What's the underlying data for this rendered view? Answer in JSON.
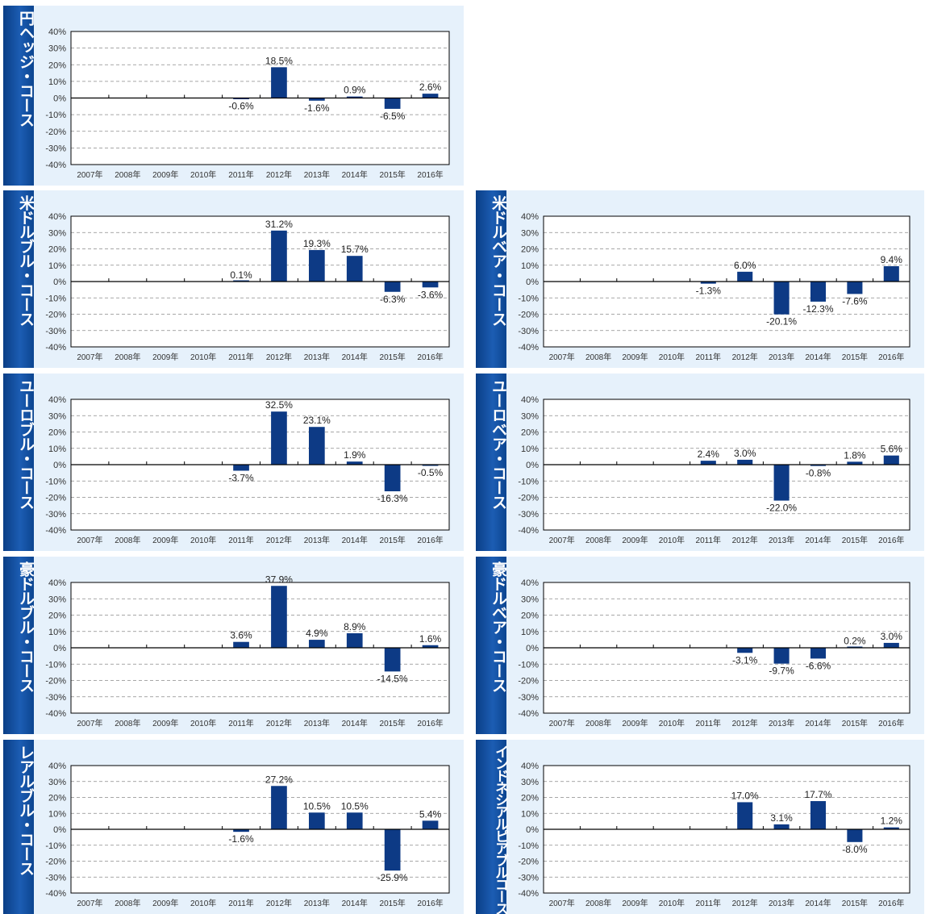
{
  "categories": [
    "2007年",
    "2008年",
    "2009年",
    "2010年",
    "2011年",
    "2012年",
    "2013年",
    "2014年",
    "2015年",
    "2016年"
  ],
  "y_ticks": [
    "40%",
    "30%",
    "20%",
    "10%",
    "0%",
    "-10%",
    "-20%",
    "-30%",
    "-40%"
  ],
  "colors": {
    "bar": "#0d3a85",
    "side_dark": "#0a3e86",
    "panel_bg": "#e6f1fb"
  },
  "chart_data": [
    {
      "type": "bar",
      "title": "円ヘッジ・コース",
      "ylim": [
        -40,
        40
      ],
      "values": [
        null,
        null,
        null,
        null,
        -0.6,
        18.5,
        -1.6,
        0.9,
        -6.5,
        2.6
      ],
      "labels": [
        "",
        "",
        "",
        "",
        "-0.6%",
        "18.5%",
        "-1.6%",
        "0.9%",
        "-6.5%",
        "2.6%"
      ]
    },
    {
      "type": "bar",
      "title": "米ドルブル・コース",
      "ylim": [
        -40,
        40
      ],
      "values": [
        null,
        null,
        null,
        null,
        0.1,
        31.2,
        19.3,
        15.7,
        -6.3,
        -3.6
      ],
      "labels": [
        "",
        "",
        "",
        "",
        "0.1%",
        "31.2%",
        "19.3%",
        "15.7%",
        "-6.3%",
        "-3.6%"
      ]
    },
    {
      "type": "bar",
      "title": "米ドルベア・コース",
      "ylim": [
        -40,
        40
      ],
      "values": [
        null,
        null,
        null,
        null,
        -1.3,
        6.0,
        -20.1,
        -12.3,
        -7.6,
        9.4
      ],
      "labels": [
        "",
        "",
        "",
        "",
        "-1.3%",
        "6.0%",
        "-20.1%",
        "-12.3%",
        "-7.6%",
        "9.4%"
      ]
    },
    {
      "type": "bar",
      "title": "ユーロブル・コース",
      "ylim": [
        -40,
        40
      ],
      "values": [
        null,
        null,
        null,
        null,
        -3.7,
        32.5,
        23.1,
        1.9,
        -16.3,
        -0.5
      ],
      "labels": [
        "",
        "",
        "",
        "",
        "-3.7%",
        "32.5%",
        "23.1%",
        "1.9%",
        "-16.3%",
        "-0.5%"
      ]
    },
    {
      "type": "bar",
      "title": "ユーロベア・コース",
      "ylim": [
        -40,
        40
      ],
      "values": [
        null,
        null,
        null,
        null,
        2.4,
        3.0,
        -22.0,
        -0.8,
        1.8,
        5.6
      ],
      "labels": [
        "",
        "",
        "",
        "",
        "2.4%",
        "3.0%",
        "-22.0%",
        "-0.8%",
        "1.8%",
        "5.6%"
      ]
    },
    {
      "type": "bar",
      "title": "豪ドルブル・コース",
      "ylim": [
        -40,
        40
      ],
      "values": [
        null,
        null,
        null,
        null,
        3.6,
        37.9,
        4.9,
        8.9,
        -14.5,
        1.6
      ],
      "labels": [
        "",
        "",
        "",
        "",
        "3.6%",
        "37.9%",
        "4.9%",
        "8.9%",
        "-14.5%",
        "1.6%"
      ]
    },
    {
      "type": "bar",
      "title": "豪ドルベア・コース",
      "ylim": [
        -40,
        40
      ],
      "values": [
        null,
        null,
        null,
        null,
        null,
        -3.1,
        -9.7,
        -6.6,
        0.2,
        3.0
      ],
      "labels": [
        "",
        "",
        "",
        "",
        "",
        "-3.1%",
        "-9.7%",
        "-6.6%",
        "0.2%",
        "3.0%"
      ]
    },
    {
      "type": "bar",
      "title": "レアルブル・コース",
      "ylim": [
        -40,
        40
      ],
      "values": [
        null,
        null,
        null,
        null,
        -1.6,
        27.2,
        10.5,
        10.5,
        -25.9,
        5.4
      ],
      "labels": [
        "",
        "",
        "",
        "",
        "-1.6%",
        "27.2%",
        "10.5%",
        "10.5%",
        "-25.9%",
        "5.4%"
      ]
    },
    {
      "type": "bar",
      "title": "インドネシアルピアブルコース",
      "ylim": [
        -40,
        40
      ],
      "values": [
        null,
        null,
        null,
        null,
        null,
        17.0,
        3.1,
        17.7,
        -8.0,
        1.2
      ],
      "labels": [
        "",
        "",
        "",
        "",
        "",
        "17.0%",
        "3.1%",
        "17.7%",
        "-8.0%",
        "1.2%"
      ]
    }
  ]
}
